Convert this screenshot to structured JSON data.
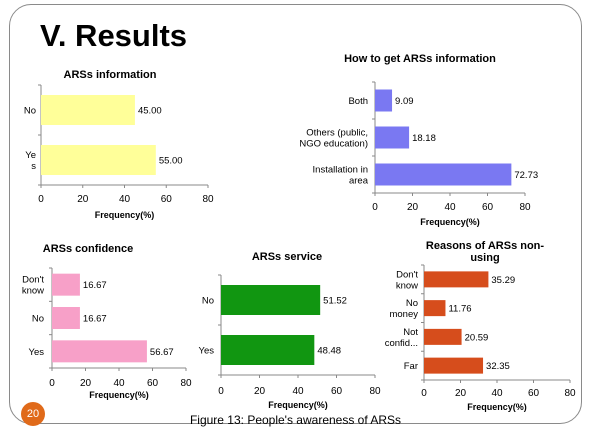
{
  "slide": {
    "title": "V. Results",
    "caption": "Figure 13: People's awareness of ARSs",
    "page_number": "20",
    "accent_color": "#e06a1a",
    "frame_color": "#8a8a8a"
  },
  "chart_data": [
    {
      "type": "bar",
      "orientation": "horizontal",
      "title": "ARSs information",
      "xlabel": "Frequency(%)",
      "ylabel": "",
      "categories": [
        "Ye\ns",
        "No"
      ],
      "values": [
        55.0,
        45.0
      ],
      "value_labels": [
        "55.00",
        "45.00"
      ],
      "xlim": [
        0,
        80
      ],
      "xticks": [
        "0",
        "20",
        "40",
        "60",
        "80"
      ],
      "color": "#ffff99",
      "grid": false,
      "legend": "none"
    },
    {
      "type": "bar",
      "orientation": "horizontal",
      "title": "How to get ARSs information",
      "xlabel": "Frequency(%)",
      "ylabel": "",
      "categories": [
        "Installation in\narea",
        "Others (public,\nNGO education)",
        "Both"
      ],
      "values": [
        72.73,
        18.18,
        9.09
      ],
      "value_labels": [
        "72.73",
        "18.18",
        "9.09"
      ],
      "xlim": [
        0,
        80
      ],
      "xticks": [
        "0",
        "20",
        "40",
        "60",
        "80"
      ],
      "color": "#7a78f2",
      "grid": false,
      "legend": "none"
    },
    {
      "type": "bar",
      "orientation": "horizontal",
      "title": "ARSs confidence",
      "xlabel": "Frequency(%)",
      "ylabel": "",
      "categories": [
        "Yes",
        "No",
        "Don't\nknow"
      ],
      "values": [
        56.67,
        16.67,
        16.67
      ],
      "value_labels": [
        "56.67",
        "16.67",
        "16.67"
      ],
      "xlim": [
        0,
        80
      ],
      "xticks": [
        "0",
        "20",
        "40",
        "60",
        "80"
      ],
      "color": "#f7a0c8",
      "grid": false,
      "legend": "none"
    },
    {
      "type": "bar",
      "orientation": "horizontal",
      "title": "ARSs service",
      "xlabel": "Frequency(%)",
      "ylabel": "",
      "categories": [
        "Yes",
        "No"
      ],
      "values": [
        48.48,
        51.52
      ],
      "value_labels": [
        "48.48",
        "51.52"
      ],
      "xlim": [
        0,
        80
      ],
      "xticks": [
        "0",
        "20",
        "40",
        "60",
        "80"
      ],
      "color": "#119611",
      "grid": false,
      "legend": "none"
    },
    {
      "type": "bar",
      "orientation": "horizontal",
      "title": "Reasons of ARSs non-\nusing",
      "xlabel": "Frequency(%)",
      "ylabel": "",
      "categories": [
        "Far",
        "Not\nconfid...",
        "No\nmoney",
        "Don't\nknow"
      ],
      "values": [
        32.35,
        20.59,
        11.76,
        35.29
      ],
      "value_labels": [
        "32.35",
        "20.59",
        "11.76",
        "35.29"
      ],
      "xlim": [
        0,
        80
      ],
      "xticks": [
        "0",
        "20",
        "40",
        "60",
        "80"
      ],
      "color": "#d64d1c",
      "grid": false,
      "legend": "none"
    }
  ]
}
